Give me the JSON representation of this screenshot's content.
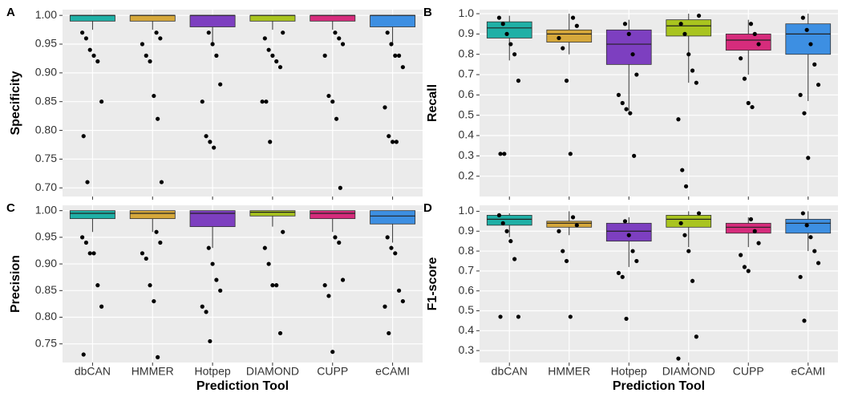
{
  "chart_data": [
    {
      "type": "box",
      "panel": "A",
      "y_label": "Specificity",
      "ylim": [
        0.685,
        1.01
      ],
      "yticks": [
        {
          "value": 0.7,
          "label": "0.70"
        },
        0.75,
        {
          "value": 0.8,
          "label": "0.80"
        },
        0.85,
        {
          "value": 0.9,
          "label": "0.90"
        },
        0.95,
        {
          "value": 1.0,
          "label": "1.00"
        }
      ],
      "grid": true,
      "colors": [
        "#1fb0a6",
        "#d6a83b",
        "#7d3fc0",
        "#a9c41f",
        "#d62c7c",
        "#3d8fe2"
      ],
      "q1": [
        0.99,
        0.99,
        0.98,
        0.99,
        0.99,
        0.98
      ],
      "median": [
        1.0,
        1.0,
        1.0,
        1.0,
        1.0,
        1.0
      ],
      "q3": [
        1.0,
        1.0,
        1.0,
        1.0,
        1.0,
        1.0
      ],
      "whisker_low": [
        0.975,
        0.975,
        0.95,
        0.975,
        0.975,
        0.95
      ],
      "whisker_high": [
        1.0,
        1.0,
        1.0,
        1.0,
        1.0,
        1.0
      ],
      "points": [
        [
          0.97,
          0.96,
          0.94,
          0.93,
          0.92,
          0.85,
          0.79,
          0.71
        ],
        [
          0.97,
          0.96,
          0.95,
          0.93,
          0.92,
          0.86,
          0.82,
          0.71
        ],
        [
          0.97,
          0.95,
          0.93,
          0.88,
          0.85,
          0.79,
          0.78,
          0.77
        ],
        [
          0.97,
          0.96,
          0.94,
          0.93,
          0.92,
          0.91,
          0.85,
          0.85,
          0.78
        ],
        [
          0.97,
          0.96,
          0.95,
          0.93,
          0.86,
          0.85,
          0.82,
          0.7
        ],
        [
          0.97,
          0.95,
          0.93,
          0.93,
          0.91,
          0.84,
          0.79,
          0.78,
          0.78
        ]
      ]
    },
    {
      "type": "box",
      "panel": "B",
      "y_label": "Recall",
      "ylim": [
        0.1,
        1.02
      ],
      "yticks": [
        0.2,
        0.3,
        0.4,
        0.5,
        0.6,
        0.7,
        0.8,
        0.9,
        {
          "value": 1.0,
          "label": "1.0"
        }
      ],
      "grid": true,
      "colors": [
        "#1fb0a6",
        "#d6a83b",
        "#7d3fc0",
        "#a9c41f",
        "#d62c7c",
        "#3d8fe2"
      ],
      "q1": [
        0.88,
        0.86,
        0.75,
        0.89,
        0.82,
        0.8
      ],
      "median": [
        0.93,
        0.9,
        0.85,
        0.94,
        0.87,
        0.9
      ],
      "q3": [
        0.96,
        0.92,
        0.92,
        0.97,
        0.9,
        0.95
      ],
      "whisker_low": [
        0.77,
        0.8,
        0.52,
        0.66,
        0.7,
        0.57
      ],
      "whisker_high": [
        0.99,
        1.0,
        0.97,
        1.0,
        0.97,
        1.0
      ],
      "points": [
        [
          0.98,
          0.95,
          0.9,
          0.85,
          0.8,
          0.67,
          0.31,
          0.31
        ],
        [
          0.98,
          0.94,
          0.88,
          0.83,
          0.67,
          0.31
        ],
        [
          0.95,
          0.9,
          0.8,
          0.7,
          0.6,
          0.56,
          0.53,
          0.51,
          0.3
        ],
        [
          0.99,
          0.95,
          0.9,
          0.8,
          0.72,
          0.66,
          0.48,
          0.23,
          0.15
        ],
        [
          0.95,
          0.9,
          0.85,
          0.78,
          0.68,
          0.56,
          0.54
        ],
        [
          0.98,
          0.92,
          0.85,
          0.75,
          0.65,
          0.6,
          0.51,
          0.29
        ]
      ]
    },
    {
      "type": "box",
      "panel": "C",
      "y_label": "Precision",
      "x_label": "Prediction Tool",
      "categories": [
        "dbCAN",
        "HMMER",
        "Hotpep",
        "DIAMOND",
        "CUPP",
        "eCAMI"
      ],
      "ylim": [
        0.715,
        1.01
      ],
      "yticks": [
        0.75,
        {
          "value": 0.8,
          "label": "0.80"
        },
        0.85,
        {
          "value": 0.9,
          "label": "0.90"
        },
        0.95,
        {
          "value": 1.0,
          "label": "1.00"
        }
      ],
      "grid": true,
      "colors": [
        "#1fb0a6",
        "#d6a83b",
        "#7d3fc0",
        "#a9c41f",
        "#d62c7c",
        "#3d8fe2"
      ],
      "q1": [
        0.985,
        0.985,
        0.97,
        0.99,
        0.985,
        0.975
      ],
      "median": [
        0.995,
        0.995,
        0.995,
        0.997,
        0.995,
        0.99
      ],
      "q3": [
        1.0,
        1.0,
        1.0,
        1.0,
        1.0,
        1.0
      ],
      "whisker_low": [
        0.96,
        0.96,
        0.93,
        0.97,
        0.96,
        0.94
      ],
      "whisker_high": [
        1.0,
        1.0,
        1.0,
        1.0,
        1.0,
        1.0
      ],
      "points": [
        [
          0.95,
          0.94,
          0.92,
          0.92,
          0.86,
          0.82,
          0.73
        ],
        [
          0.96,
          0.94,
          0.92,
          0.91,
          0.86,
          0.83,
          0.725
        ],
        [
          0.93,
          0.9,
          0.87,
          0.85,
          0.82,
          0.81,
          0.755
        ],
        [
          0.96,
          0.93,
          0.9,
          0.86,
          0.86,
          0.77
        ],
        [
          0.95,
          0.94,
          0.87,
          0.86,
          0.84,
          0.735
        ],
        [
          0.95,
          0.93,
          0.92,
          0.85,
          0.83,
          0.82,
          0.77
        ]
      ]
    },
    {
      "type": "box",
      "panel": "D",
      "y_label": "F1-score",
      "x_label": "Prediction Tool",
      "categories": [
        "dbCAN",
        "HMMER",
        "Hotpep",
        "DIAMOND",
        "CUPP",
        "eCAMI"
      ],
      "ylim": [
        0.24,
        1.03
      ],
      "yticks": [
        0.3,
        0.4,
        0.5,
        0.6,
        0.7,
        0.8,
        0.9,
        {
          "value": 1.0,
          "label": "1.0"
        }
      ],
      "grid": true,
      "colors": [
        "#1fb0a6",
        "#d6a83b",
        "#7d3fc0",
        "#a9c41f",
        "#d62c7c",
        "#3d8fe2"
      ],
      "q1": [
        0.93,
        0.92,
        0.85,
        0.92,
        0.89,
        0.89
      ],
      "median": [
        0.96,
        0.94,
        0.9,
        0.96,
        0.92,
        0.94
      ],
      "q3": [
        0.98,
        0.95,
        0.94,
        0.98,
        0.94,
        0.96
      ],
      "whisker_low": [
        0.87,
        0.88,
        0.72,
        0.82,
        0.82,
        0.8
      ],
      "whisker_high": [
        0.99,
        1.0,
        0.97,
        1.0,
        0.97,
        1.0
      ],
      "points": [
        [
          0.98,
          0.94,
          0.9,
          0.85,
          0.76,
          0.47,
          0.47
        ],
        [
          0.97,
          0.93,
          0.9,
          0.8,
          0.75,
          0.47
        ],
        [
          0.95,
          0.88,
          0.8,
          0.75,
          0.69,
          0.67,
          0.46
        ],
        [
          0.99,
          0.94,
          0.88,
          0.8,
          0.65,
          0.37,
          0.26
        ],
        [
          0.96,
          0.9,
          0.84,
          0.78,
          0.72,
          0.7
        ],
        [
          0.99,
          0.93,
          0.87,
          0.8,
          0.74,
          0.67,
          0.45
        ]
      ]
    }
  ]
}
